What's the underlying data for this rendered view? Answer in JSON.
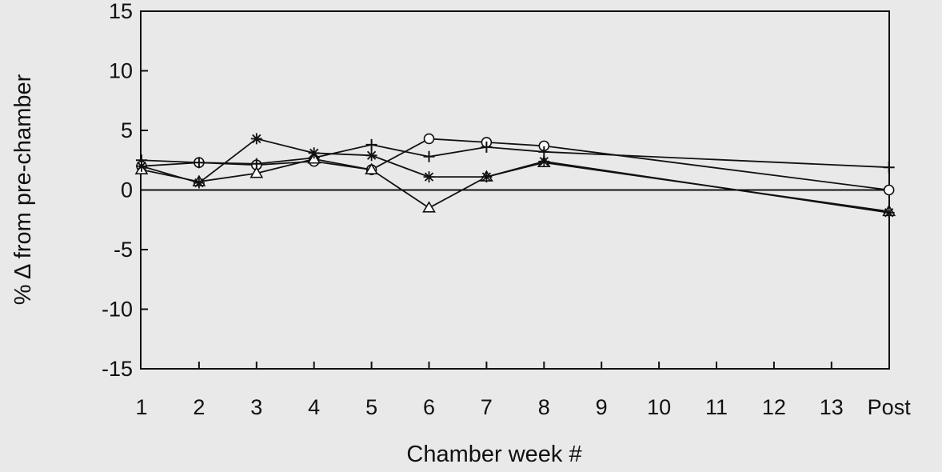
{
  "chart_data": {
    "type": "line",
    "title": "",
    "xlabel": "Chamber week #",
    "ylabel": "% Δ from pre-chamber",
    "categories": [
      "1",
      "2",
      "3",
      "4",
      "5",
      "6",
      "7",
      "8",
      "9",
      "10",
      "11",
      "12",
      "13",
      "Post"
    ],
    "ylim": [
      -15,
      15
    ],
    "yticks": [
      15,
      10,
      5,
      0,
      -5,
      -10,
      -15
    ],
    "grid": false,
    "reference_line": 0,
    "series": [
      {
        "marker": "circle",
        "values": [
          2.0,
          2.3,
          2.1,
          2.4,
          1.7,
          4.3,
          4.0,
          3.7,
          null,
          null,
          null,
          null,
          null,
          0.0
        ]
      },
      {
        "marker": "plus",
        "values": [
          2.5,
          2.3,
          2.2,
          2.7,
          3.8,
          2.8,
          3.6,
          3.2,
          null,
          null,
          null,
          null,
          null,
          1.9
        ]
      },
      {
        "marker": "triangle",
        "values": [
          1.7,
          0.7,
          1.4,
          2.6,
          1.7,
          -1.5,
          1.1,
          2.3,
          null,
          null,
          null,
          null,
          null,
          -1.8
        ]
      },
      {
        "marker": "star",
        "values": [
          2.0,
          0.6,
          4.3,
          3.1,
          2.9,
          1.1,
          1.1,
          2.4,
          null,
          null,
          null,
          null,
          null,
          -1.9
        ]
      }
    ]
  }
}
